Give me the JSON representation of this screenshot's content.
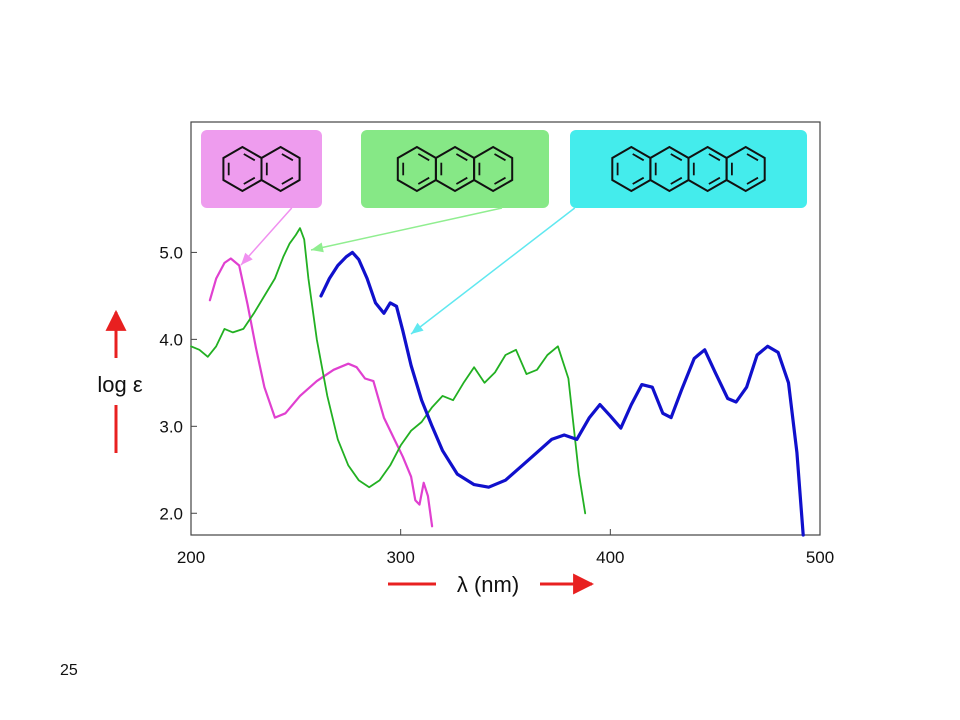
{
  "slide": {
    "number": "25"
  },
  "chart_data": {
    "type": "line",
    "xlabel": "λ (nm)",
    "ylabel": "log ε",
    "xlim": [
      200,
      500
    ],
    "ylim": [
      1.75,
      6.5
    ],
    "x_ticks": [
      {
        "value": 200,
        "label": "200"
      },
      {
        "value": 300,
        "label": "300"
      },
      {
        "value": 400,
        "label": "400"
      },
      {
        "value": 500,
        "label": "500"
      }
    ],
    "y_ticks": [
      {
        "value": 2.0,
        "label": "2.0"
      },
      {
        "value": 3.0,
        "label": "3.0"
      },
      {
        "value": 4.0,
        "label": "4.0"
      },
      {
        "value": 5.0,
        "label": "5.0"
      }
    ],
    "grid": false,
    "arrow_color": "#e82020",
    "series": [
      {
        "color": "#e040d0",
        "structure_color": "#ee9cee",
        "rings": 2,
        "points": [
          [
            209,
            4.45
          ],
          [
            212,
            4.7
          ],
          [
            216,
            4.88
          ],
          [
            219,
            4.93
          ],
          [
            223,
            4.85
          ],
          [
            227,
            4.4
          ],
          [
            231,
            3.9
          ],
          [
            235,
            3.45
          ],
          [
            240,
            3.1
          ],
          [
            245,
            3.15
          ],
          [
            252,
            3.35
          ],
          [
            260,
            3.52
          ],
          [
            268,
            3.65
          ],
          [
            275,
            3.72
          ],
          [
            279,
            3.68
          ],
          [
            283,
            3.55
          ],
          [
            287,
            3.52
          ],
          [
            292,
            3.1
          ],
          [
            297,
            2.85
          ],
          [
            301,
            2.65
          ],
          [
            305,
            2.42
          ],
          [
            307,
            2.15
          ],
          [
            309,
            2.1
          ],
          [
            311,
            2.35
          ],
          [
            313,
            2.2
          ],
          [
            315,
            1.85
          ]
        ]
      },
      {
        "color": "#22b022",
        "structure_color": "#86e886",
        "rings": 3,
        "points": [
          [
            200,
            3.92
          ],
          [
            204,
            3.88
          ],
          [
            208,
            3.8
          ],
          [
            212,
            3.92
          ],
          [
            216,
            4.12
          ],
          [
            220,
            4.08
          ],
          [
            225,
            4.12
          ],
          [
            230,
            4.3
          ],
          [
            235,
            4.5
          ],
          [
            240,
            4.7
          ],
          [
            244,
            4.95
          ],
          [
            247,
            5.1
          ],
          [
            250,
            5.2
          ],
          [
            252,
            5.28
          ],
          [
            254,
            5.15
          ],
          [
            256,
            4.7
          ],
          [
            260,
            4.0
          ],
          [
            265,
            3.35
          ],
          [
            270,
            2.85
          ],
          [
            275,
            2.55
          ],
          [
            280,
            2.38
          ],
          [
            285,
            2.3
          ],
          [
            290,
            2.38
          ],
          [
            295,
            2.55
          ],
          [
            300,
            2.78
          ],
          [
            305,
            2.95
          ],
          [
            310,
            3.05
          ],
          [
            315,
            3.22
          ],
          [
            320,
            3.35
          ],
          [
            325,
            3.3
          ],
          [
            330,
            3.5
          ],
          [
            335,
            3.68
          ],
          [
            340,
            3.5
          ],
          [
            345,
            3.62
          ],
          [
            350,
            3.82
          ],
          [
            355,
            3.88
          ],
          [
            360,
            3.6
          ],
          [
            365,
            3.65
          ],
          [
            370,
            3.82
          ],
          [
            375,
            3.92
          ],
          [
            380,
            3.55
          ],
          [
            385,
            2.45
          ],
          [
            388,
            2.0
          ]
        ]
      },
      {
        "color": "#1010cc",
        "structure_color": "#44ecec",
        "rings": 4,
        "points": [
          [
            262,
            4.5
          ],
          [
            266,
            4.7
          ],
          [
            270,
            4.85
          ],
          [
            274,
            4.95
          ],
          [
            277,
            5.0
          ],
          [
            280,
            4.92
          ],
          [
            284,
            4.7
          ],
          [
            288,
            4.42
          ],
          [
            292,
            4.3
          ],
          [
            295,
            4.42
          ],
          [
            298,
            4.38
          ],
          [
            301,
            4.1
          ],
          [
            305,
            3.7
          ],
          [
            310,
            3.3
          ],
          [
            315,
            3.0
          ],
          [
            320,
            2.72
          ],
          [
            327,
            2.45
          ],
          [
            335,
            2.33
          ],
          [
            342,
            2.3
          ],
          [
            350,
            2.38
          ],
          [
            358,
            2.55
          ],
          [
            365,
            2.7
          ],
          [
            372,
            2.85
          ],
          [
            378,
            2.9
          ],
          [
            384,
            2.85
          ],
          [
            390,
            3.1
          ],
          [
            395,
            3.25
          ],
          [
            400,
            3.12
          ],
          [
            405,
            2.98
          ],
          [
            410,
            3.25
          ],
          [
            415,
            3.48
          ],
          [
            420,
            3.45
          ],
          [
            425,
            3.15
          ],
          [
            429,
            3.1
          ],
          [
            434,
            3.42
          ],
          [
            440,
            3.78
          ],
          [
            445,
            3.88
          ],
          [
            450,
            3.62
          ],
          [
            456,
            3.32
          ],
          [
            460,
            3.28
          ],
          [
            465,
            3.45
          ],
          [
            470,
            3.82
          ],
          [
            475,
            3.92
          ],
          [
            480,
            3.85
          ],
          [
            485,
            3.5
          ],
          [
            489,
            2.7
          ],
          [
            492,
            1.75
          ]
        ]
      }
    ]
  }
}
